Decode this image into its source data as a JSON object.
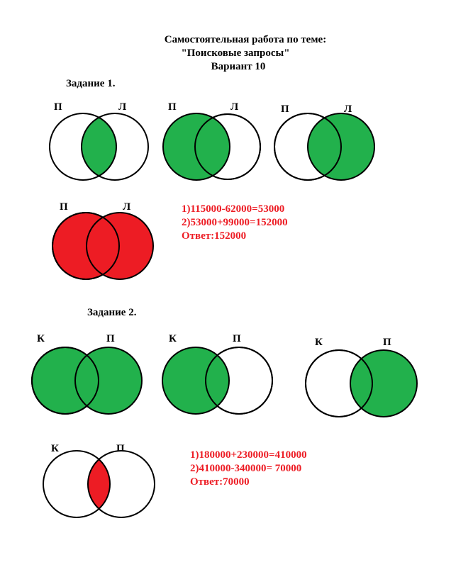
{
  "title": {
    "line1": "Самостоятельная работа по теме:",
    "line2": "\"Поисковые запросы\"",
    "line3": "Вариант 10"
  },
  "colors": {
    "green": "#22b14c",
    "red": "#ed1c24"
  },
  "task1": {
    "heading": "Задание 1.",
    "labels": {
      "left": "П",
      "right": "Л"
    },
    "solution": [
      "1)115000-62000=53000",
      "2)53000+99000=152000",
      "Ответ:152000"
    ]
  },
  "task2": {
    "heading": "Задание 2.",
    "labels": {
      "left": "К",
      "right": "П"
    },
    "solution": [
      "1)180000+230000=410000",
      "2)410000-340000= 70000",
      "Ответ:70000"
    ]
  }
}
